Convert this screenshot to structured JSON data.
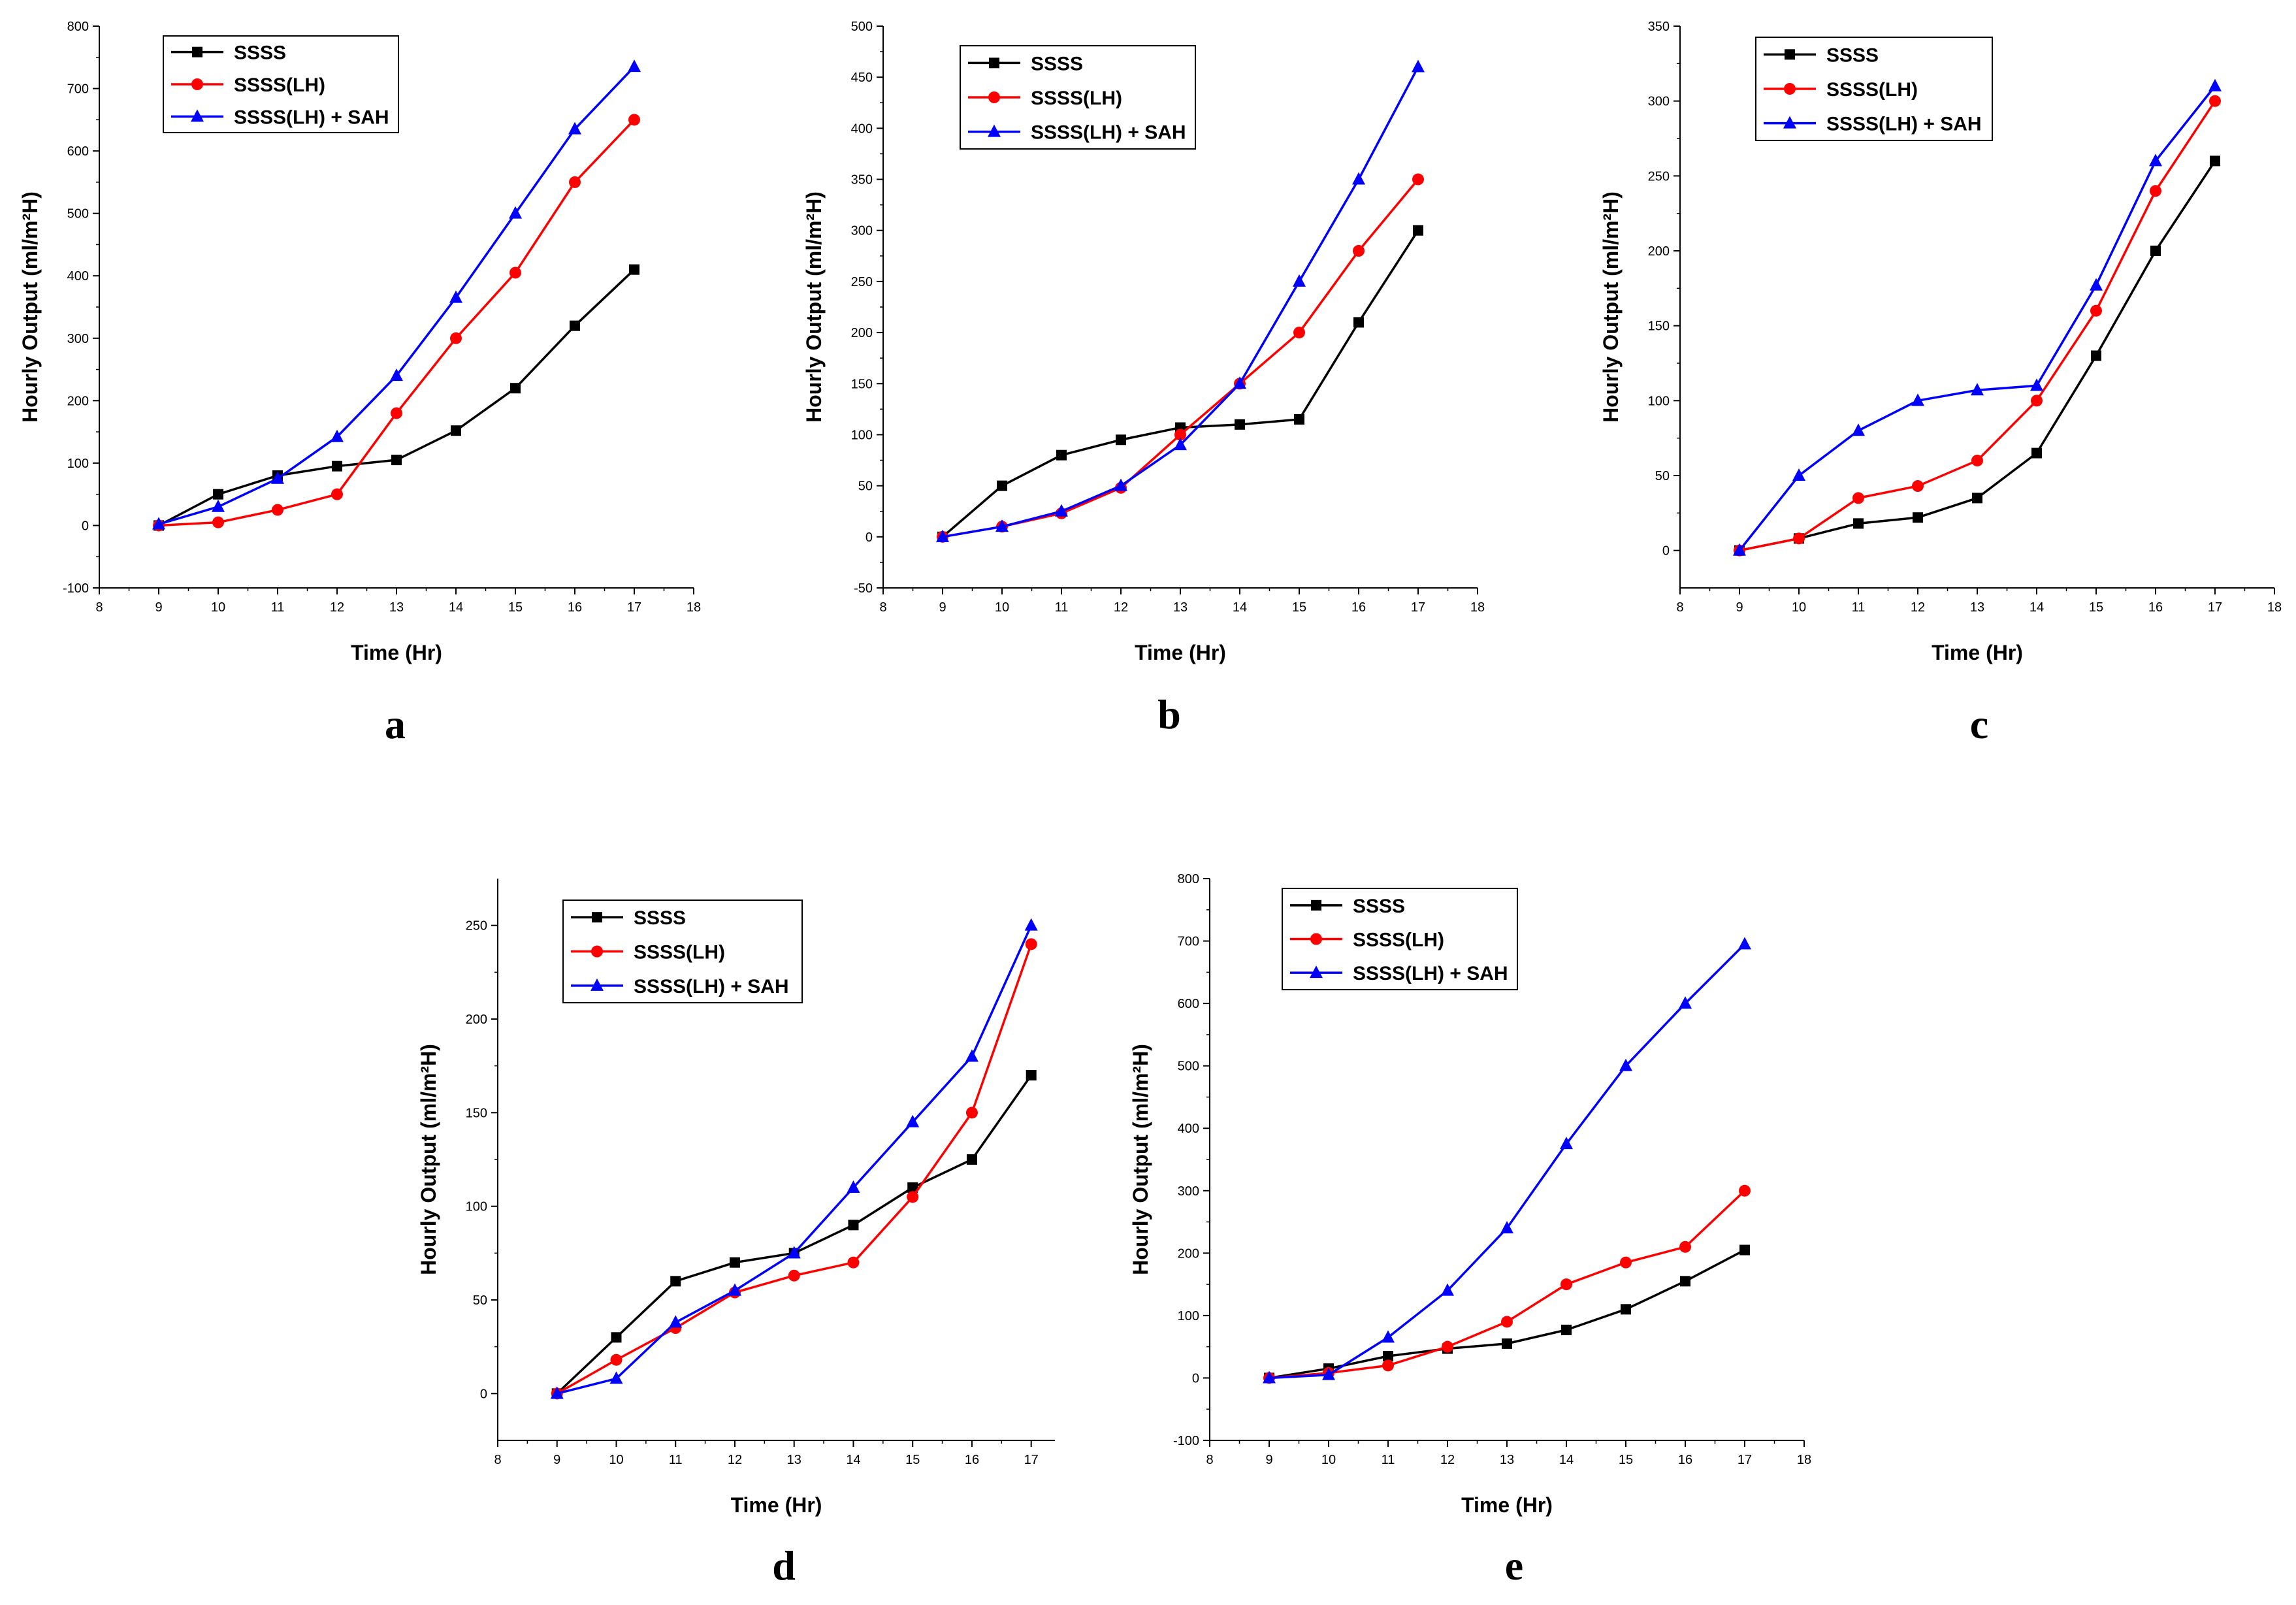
{
  "series_styles": [
    {
      "color": "#000000",
      "marker": "square"
    },
    {
      "color": "#ff0000",
      "marker": "circle"
    },
    {
      "color": "#0000ff",
      "marker": "triangle"
    }
  ],
  "chart_data": [
    {
      "type": "line",
      "panel_label": "a",
      "xlabel": "Time (Hr)",
      "ylabel": "Hourly Output (ml/m²H)",
      "xlim": [
        8,
        18
      ],
      "ylim": [
        -100,
        800
      ],
      "xticks": [
        8,
        9,
        10,
        11,
        12,
        13,
        14,
        15,
        16,
        17,
        18
      ],
      "yticks": [
        -100,
        0,
        100,
        200,
        300,
        400,
        500,
        600,
        700,
        800
      ],
      "x": [
        9,
        10,
        11,
        12,
        13,
        14,
        15,
        16,
        17
      ],
      "legend_position": "top-left",
      "series": [
        {
          "name": "SSSS",
          "values": [
            0,
            50,
            80,
            95,
            105,
            152,
            220,
            320,
            410
          ]
        },
        {
          "name": "SSSS(LH)",
          "values": [
            0,
            5,
            25,
            50,
            180,
            300,
            405,
            550,
            650
          ]
        },
        {
          "name": "SSSS(LH) + SAH",
          "values": [
            2,
            30,
            75,
            142,
            240,
            365,
            500,
            635,
            735
          ]
        }
      ]
    },
    {
      "type": "line",
      "panel_label": "b",
      "xlabel": "Time (Hr)",
      "ylabel": "Hourly Output (ml/m²H)",
      "xlim": [
        8,
        18
      ],
      "ylim": [
        -50,
        500
      ],
      "xticks": [
        8,
        9,
        10,
        11,
        12,
        13,
        14,
        15,
        16,
        17,
        18
      ],
      "yticks": [
        -50,
        0,
        50,
        100,
        150,
        200,
        250,
        300,
        350,
        400,
        450,
        500
      ],
      "x": [
        9,
        10,
        11,
        12,
        13,
        14,
        15,
        16,
        17
      ],
      "legend_position": "top-left",
      "series": [
        {
          "name": "SSSS",
          "values": [
            0,
            50,
            80,
            95,
            107,
            110,
            115,
            210,
            300
          ]
        },
        {
          "name": "SSSS(LH)",
          "values": [
            0,
            10,
            23,
            48,
            100,
            150,
            200,
            280,
            350
          ]
        },
        {
          "name": "SSSS(LH) + SAH",
          "values": [
            0,
            10,
            25,
            50,
            90,
            150,
            250,
            350,
            460
          ]
        }
      ]
    },
    {
      "type": "line",
      "panel_label": "c",
      "xlabel": "Time (Hr)",
      "ylabel": "Hourly Output (ml/m²H)",
      "xlim": [
        8,
        18
      ],
      "ylim": [
        -25,
        350
      ],
      "xticks": [
        8,
        9,
        10,
        11,
        12,
        13,
        14,
        15,
        16,
        17,
        18
      ],
      "yticks": [
        0,
        50,
        100,
        150,
        200,
        250,
        300,
        350
      ],
      "x": [
        9,
        10,
        11,
        12,
        13,
        14,
        15,
        16,
        17
      ],
      "legend_position": "top-left",
      "series": [
        {
          "name": "SSSS",
          "values": [
            0,
            8,
            18,
            22,
            35,
            65,
            130,
            200,
            260
          ]
        },
        {
          "name": "SSSS(LH)",
          "values": [
            0,
            8,
            35,
            43,
            60,
            100,
            160,
            240,
            300
          ]
        },
        {
          "name": "SSSS(LH) + SAH",
          "values": [
            0,
            50,
            80,
            100,
            107,
            110,
            177,
            260,
            310
          ]
        }
      ]
    },
    {
      "type": "line",
      "panel_label": "d",
      "xlabel": "Time (Hr)",
      "ylabel": "Hourly Output (ml/m²H)",
      "xlim": [
        8,
        17.4
      ],
      "ylim": [
        -25,
        275
      ],
      "xticks": [
        8,
        9,
        10,
        11,
        12,
        13,
        14,
        15,
        16,
        17
      ],
      "yticks": [
        0,
        50,
        100,
        150,
        200,
        250
      ],
      "x": [
        9,
        10,
        11,
        12,
        13,
        14,
        15,
        16,
        17
      ],
      "legend_position": "top-left",
      "series": [
        {
          "name": "SSSS",
          "values": [
            0,
            30,
            60,
            70,
            75,
            90,
            110,
            125,
            170
          ]
        },
        {
          "name": "SSSS(LH)",
          "values": [
            0,
            18,
            35,
            54,
            63,
            70,
            105,
            150,
            240
          ]
        },
        {
          "name": "SSSS(LH) + SAH",
          "values": [
            0,
            8,
            38,
            55,
            75,
            110,
            145,
            180,
            250
          ]
        }
      ]
    },
    {
      "type": "line",
      "panel_label": "e",
      "xlabel": "Time (Hr)",
      "ylabel": "Hourly Output (ml/m²H)",
      "xlim": [
        8,
        18
      ],
      "ylim": [
        -100,
        800
      ],
      "xticks": [
        8,
        9,
        10,
        11,
        12,
        13,
        14,
        15,
        16,
        17,
        18
      ],
      "yticks": [
        -100,
        0,
        100,
        200,
        300,
        400,
        500,
        600,
        700,
        800
      ],
      "x": [
        9,
        10,
        11,
        12,
        13,
        14,
        15,
        16,
        17
      ],
      "legend_position": "top-left",
      "series": [
        {
          "name": "SSSS",
          "values": [
            0,
            15,
            35,
            47,
            55,
            77,
            110,
            155,
            205
          ]
        },
        {
          "name": "SSSS(LH)",
          "values": [
            0,
            8,
            20,
            50,
            90,
            150,
            185,
            210,
            300
          ]
        },
        {
          "name": "SSSS(LH) + SAH",
          "values": [
            0,
            5,
            65,
            140,
            240,
            375,
            500,
            600,
            695
          ]
        }
      ]
    }
  ]
}
